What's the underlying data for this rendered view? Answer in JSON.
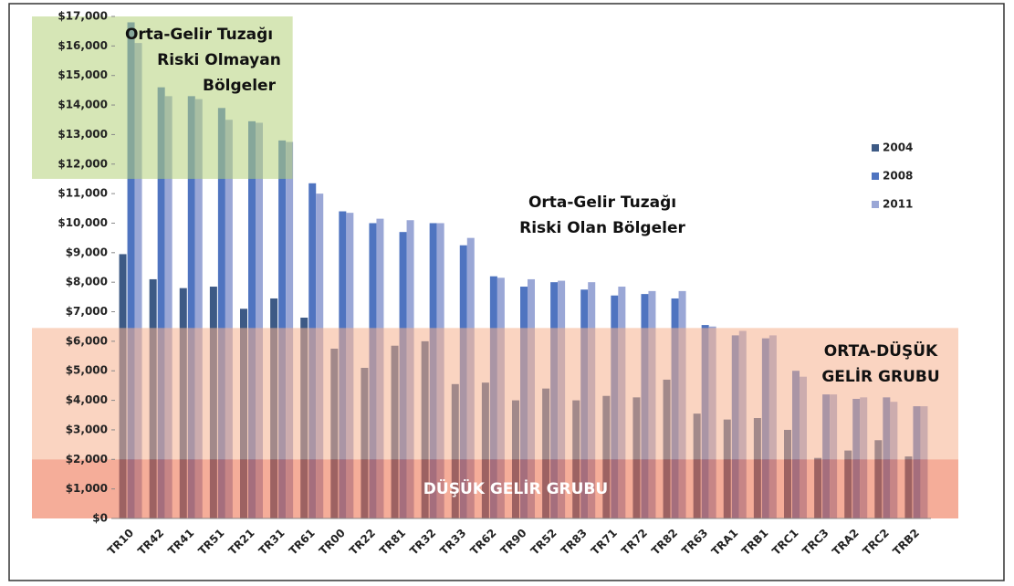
{
  "chart_data": {
    "type": "bar",
    "categories": [
      "TR10",
      "TR42",
      "TR41",
      "TR51",
      "TR21",
      "TR31",
      "TR61",
      "TR00",
      "TR22",
      "TR81",
      "TR32",
      "TR33",
      "TR62",
      "TR90",
      "TR52",
      "TR83",
      "TR71",
      "TR72",
      "TR82",
      "TR63",
      "TRA1",
      "TRB1",
      "TRC1",
      "TRC3",
      "TRA2",
      "TRC2",
      "TRB2"
    ],
    "series": [
      {
        "name": "2004",
        "color": "#3d5a85",
        "values": [
          8950,
          8100,
          7800,
          7850,
          7100,
          7450,
          6800,
          5750,
          5100,
          5850,
          6000,
          4550,
          4600,
          4000,
          4400,
          4000,
          4150,
          4100,
          4700,
          3550,
          3350,
          3400,
          3000,
          2050,
          2300,
          2650,
          2100
        ]
      },
      {
        "name": "2008",
        "color": "#4f74c0",
        "values": [
          16800,
          14600,
          14300,
          13900,
          13450,
          12800,
          11350,
          10400,
          10000,
          9700,
          10000,
          9250,
          8200,
          7850,
          8000,
          7750,
          7550,
          7600,
          7450,
          6550,
          6200,
          6100,
          5000,
          4200,
          4050,
          4100,
          3800
        ]
      },
      {
        "name": "2011",
        "color": "#9aa7d6",
        "values": [
          16100,
          14300,
          14200,
          13500,
          13400,
          12750,
          11000,
          10350,
          10150,
          10100,
          10000,
          9500,
          8150,
          8100,
          8050,
          8000,
          7850,
          7700,
          7700,
          6500,
          6350,
          6200,
          4800,
          4200,
          4100,
          3950,
          3800
        ]
      }
    ],
    "ylim": [
      0,
      17000
    ],
    "yticks": [
      {
        "value": 0,
        "label": "$0"
      },
      {
        "value": 1000,
        "label": "$1,000"
      },
      {
        "value": 2000,
        "label": "$2,000"
      },
      {
        "value": 3000,
        "label": "$3,000"
      },
      {
        "value": 4000,
        "label": "$4,000"
      },
      {
        "value": 5000,
        "label": "$5,000"
      },
      {
        "value": 6000,
        "label": "$6,000"
      },
      {
        "value": 7000,
        "label": "$7,000"
      },
      {
        "value": 8000,
        "label": "$8,000"
      },
      {
        "value": 9000,
        "label": "$9,000"
      },
      {
        "value": 10000,
        "label": "$10,000"
      },
      {
        "value": 11000,
        "label": "$11,000"
      },
      {
        "value": 12000,
        "label": "$12,000"
      },
      {
        "value": 13000,
        "label": "$13,000"
      },
      {
        "value": 14000,
        "label": "$14,000"
      },
      {
        "value": 15000,
        "label": "$15,000"
      },
      {
        "value": 16000,
        "label": "$16,000"
      },
      {
        "value": 17000,
        "label": "$17,000"
      }
    ],
    "regions": [
      {
        "lines": [
          "Orta-Gelir Tuzağı",
          "Riski Olmayan",
          "Bölgeler"
        ],
        "y": [
          11500,
          17000
        ],
        "x_to": "TR31",
        "color": "#b5d27a"
      },
      {
        "lines": [
          "ORTA-DÜŞÜK",
          "GELİR GRUBU"
        ],
        "y": [
          2000,
          6450
        ],
        "color": "#f6b08e"
      },
      {
        "lines": [
          "DÜŞÜK GELİR GRUBU"
        ],
        "y": [
          0,
          2000
        ],
        "color": "#ec6a45"
      }
    ],
    "annotations": [
      {
        "lines": [
          "Orta-Gelir Tuzağı",
          "Riski Olan Bölgeler"
        ]
      }
    ],
    "legend": "right"
  }
}
